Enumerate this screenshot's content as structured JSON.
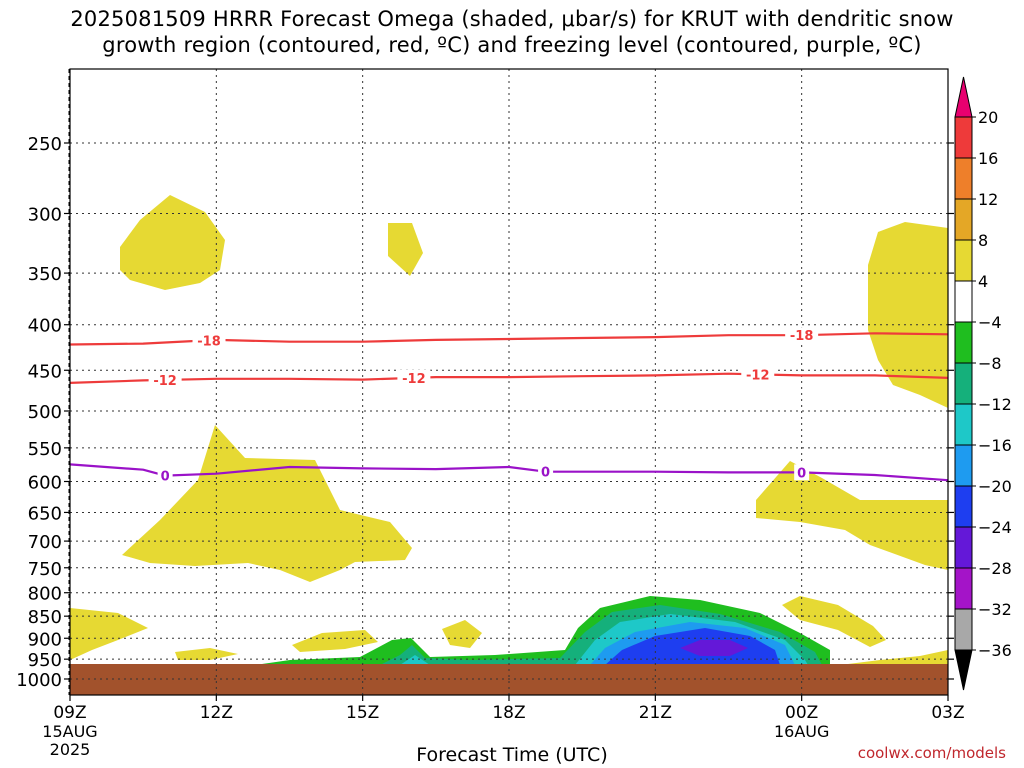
{
  "title_line1": "2025081509 HRRR Forecast Omega (shaded, μbar/s) for KRUT with dendritic snow",
  "title_line2": "growth region (contoured, red, ºC) and freezing level (contoured, purple, ºC)",
  "credit": "coolwx.com/models",
  "chart_data": {
    "type": "area",
    "xlabel": "Forecast Time (UTC)",
    "x_ticks": [
      {
        "label": "09Z",
        "sub": [
          "15AUG",
          "2025"
        ]
      },
      {
        "label": "12Z",
        "sub": []
      },
      {
        "label": "15Z",
        "sub": []
      },
      {
        "label": "18Z",
        "sub": []
      },
      {
        "label": "21Z",
        "sub": []
      },
      {
        "label": "00Z",
        "sub": [
          "16AUG"
        ]
      },
      {
        "label": "03Z",
        "sub": []
      }
    ],
    "y_ticks": [
      250,
      300,
      350,
      400,
      450,
      500,
      550,
      600,
      650,
      700,
      750,
      800,
      850,
      900,
      950,
      1000
    ],
    "y_scale": "log pressure (hPa), inverted",
    "grid": true,
    "colorbar": {
      "labels": [
        20,
        16,
        12,
        8,
        4,
        -4,
        -8,
        -12,
        -16,
        -20,
        -24,
        -28,
        -32,
        -36
      ],
      "colors": [
        "#e8006f",
        "#ee3a3a",
        "#ee7f2a",
        "#e4a726",
        "#e6d933",
        "#ffffff",
        "#1fbe1f",
        "#15b07b",
        "#1ec8c8",
        "#1e9bf0",
        "#1e3ef0",
        "#6418d8",
        "#a414c8",
        "#a8a8a8",
        "#000000"
      ]
    },
    "contours": [
      {
        "name": "-18",
        "color": "#ee3b3b",
        "label": "-18",
        "points": [
          [
            0,
            421
          ],
          [
            1.0,
            420
          ],
          [
            2.0,
            416
          ],
          [
            3.0,
            418
          ],
          [
            4.0,
            418
          ],
          [
            5.0,
            416
          ],
          [
            6.0,
            415
          ],
          [
            7.0,
            414
          ],
          [
            8.0,
            413
          ],
          [
            9.0,
            411
          ],
          [
            10.0,
            411
          ],
          [
            11.0,
            409
          ],
          [
            12.0,
            410
          ]
        ],
        "labels_at": [
          1.9,
          10.0
        ]
      },
      {
        "name": "-12",
        "color": "#ee3b3b",
        "label": "-12",
        "points": [
          [
            0,
            465
          ],
          [
            1.0,
            462
          ],
          [
            2.0,
            460
          ],
          [
            3.0,
            460
          ],
          [
            4.0,
            461
          ],
          [
            5.0,
            458
          ],
          [
            6.0,
            458
          ],
          [
            7.0,
            457
          ],
          [
            8.0,
            456
          ],
          [
            9.0,
            454
          ],
          [
            10.0,
            456
          ],
          [
            11.0,
            456
          ],
          [
            12.0,
            459
          ]
        ],
        "labels_at": [
          1.3,
          4.7,
          9.4
        ]
      },
      {
        "name": "0",
        "color": "#9a12c8",
        "label": "0",
        "points": [
          [
            0,
            574
          ],
          [
            1.0,
            582
          ],
          [
            1.3,
            591
          ],
          [
            2.0,
            588
          ],
          [
            3.0,
            578
          ],
          [
            4.0,
            580
          ],
          [
            5.0,
            581
          ],
          [
            6.0,
            578
          ],
          [
            6.5,
            585
          ],
          [
            7.0,
            585
          ],
          [
            8.0,
            585
          ],
          [
            9.0,
            586
          ],
          [
            10.0,
            586
          ],
          [
            11.0,
            590
          ],
          [
            12.0,
            598
          ]
        ],
        "labels_at": [
          1.3,
          6.5,
          10.0
        ]
      }
    ]
  }
}
